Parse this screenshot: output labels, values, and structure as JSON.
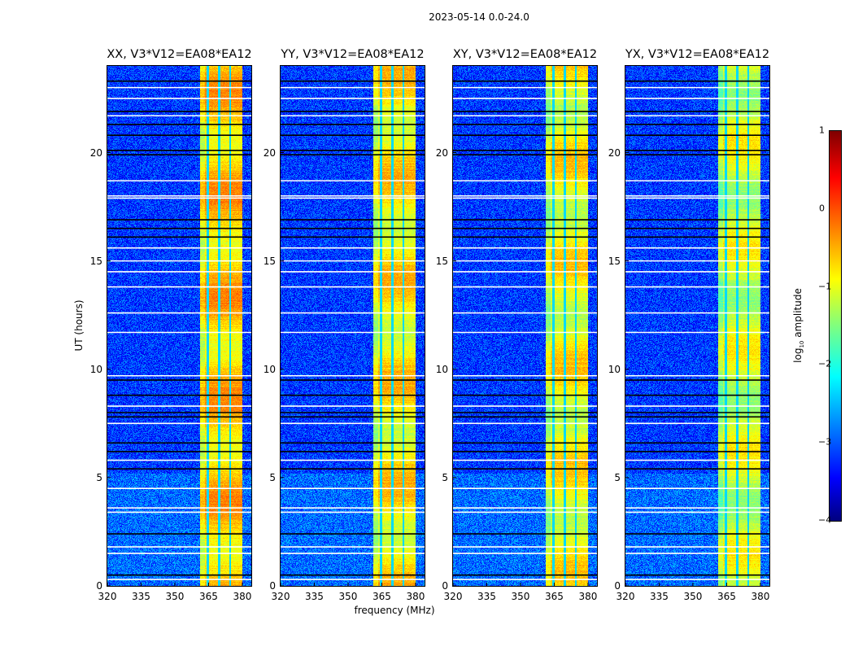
{
  "chart_data": {
    "type": "heatmap",
    "title": "2023-05-14 0.0-24.0",
    "xlabel": "frequency (MHz)",
    "ylabel": "UT (hours)",
    "xlim": [
      320,
      384
    ],
    "ylim": [
      0,
      24
    ],
    "xticks": [
      320,
      335,
      350,
      365,
      380
    ],
    "yticks": [
      0,
      5,
      10,
      15,
      20
    ],
    "panels": [
      {
        "title": "XX, V3*V12=EA08*EA12",
        "band_level": -0.6
      },
      {
        "title": "YY, V3*V12=EA08*EA12",
        "band_level": -0.8
      },
      {
        "title": "XY, V3*V12=EA08*EA12",
        "band_level": -0.9
      },
      {
        "title": "YX, V3*V12=EA08*EA12",
        "band_level": -1.1
      }
    ],
    "background_level": -3.1,
    "rfi_band_mhz": [
      361,
      380
    ],
    "band_gaps_mhz": [
      364.5,
      369.5,
      374.5
    ],
    "flagged_rows_white_ut": [
      23.0,
      22.5,
      21.7,
      18.7,
      18.0,
      17.9,
      15.6,
      15.0,
      14.5,
      13.8,
      12.6,
      11.7,
      9.7,
      8.3,
      7.5,
      5.8,
      4.5,
      3.6,
      3.4,
      1.8,
      1.5,
      0.3
    ],
    "flagged_rows_black_ut": [
      23.3,
      21.9,
      21.3,
      20.8,
      20.1,
      19.9,
      16.9,
      16.5,
      16.1,
      9.5,
      8.8,
      8.0,
      7.8,
      6.6,
      6.2,
      5.4,
      2.4,
      0.5
    ],
    "colorbar": {
      "label_main": "log",
      "label_sub": "10",
      "label_rest": " amplitude",
      "ticks": [
        "1",
        "0",
        "−1",
        "−2",
        "−3",
        "−4"
      ],
      "range": [
        -4,
        1
      ],
      "colormap": "jet"
    }
  }
}
